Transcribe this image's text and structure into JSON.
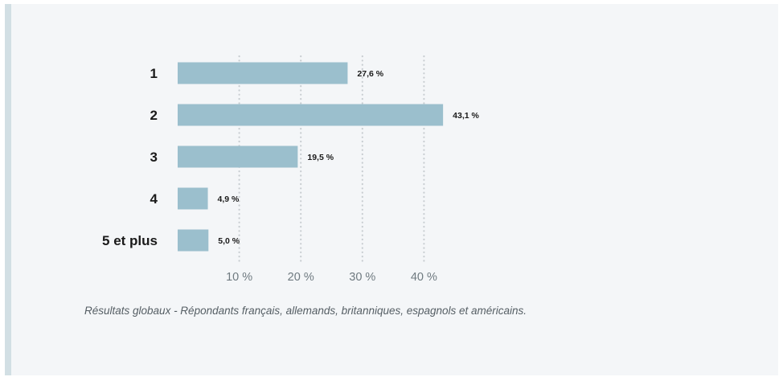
{
  "chart_data": {
    "type": "bar",
    "orientation": "horizontal",
    "categories": [
      "1",
      "2",
      "3",
      "4",
      "5 et plus"
    ],
    "values": [
      27.6,
      43.1,
      19.5,
      4.9,
      5.0
    ],
    "value_labels": [
      "27,6 %",
      "43,1 %",
      "19,5 %",
      "4,9 %",
      "5,0 %"
    ],
    "x_ticks": [
      10,
      20,
      30,
      40
    ],
    "x_tick_labels": [
      "10 %",
      "20 %",
      "30 %",
      "40 %"
    ],
    "xlim": [
      0,
      43.1
    ],
    "grid": "vertical-dotted",
    "bar_color": "#9bbfcd",
    "title": "",
    "xlabel": "",
    "ylabel": ""
  },
  "caption": "Résultats globaux - Répondants français, allemands, britanniques, espagnols et américains.",
  "colors": {
    "background": "#f4f6f8",
    "accent_bar": "#d2dfe4",
    "gridline": "#c8cdd1",
    "tick_text": "#6f7a80",
    "category_text": "#1a1a1a",
    "value_text": "#1a1a1a"
  }
}
